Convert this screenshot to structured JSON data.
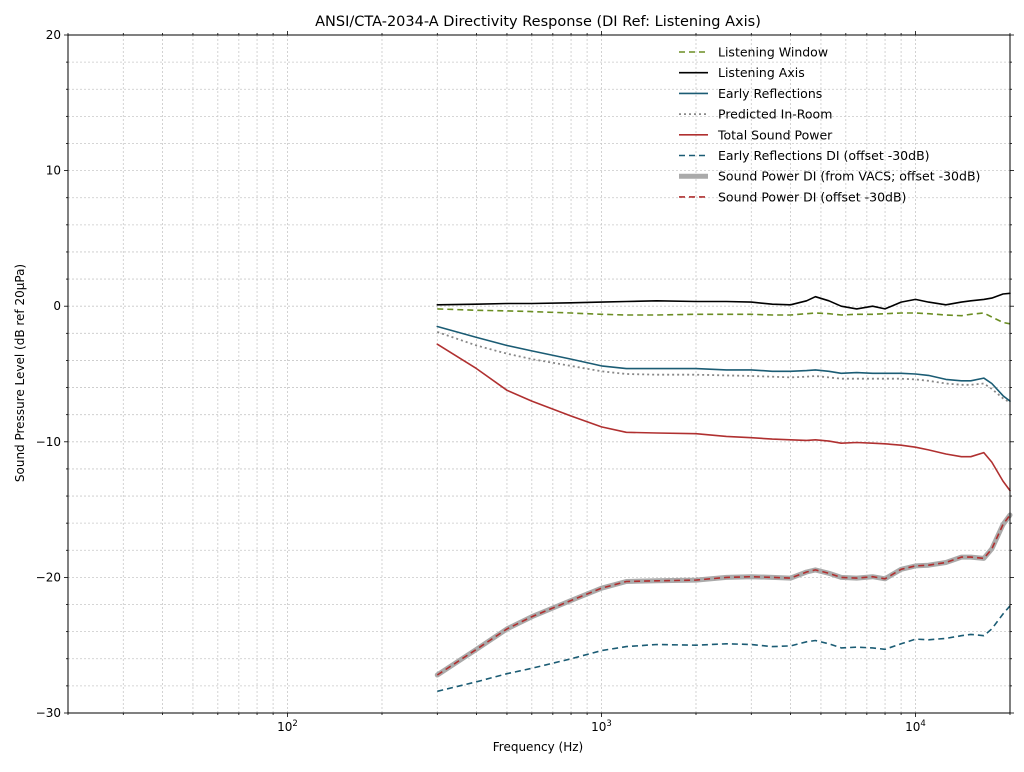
{
  "chart_data": {
    "type": "line",
    "title": "ANSI/CTA-2034-A Directivity Response (DI Ref: Listening Axis)",
    "xlabel": "Frequency (Hz)",
    "ylabel": "Sound Pressure Level (dB ref 20µPa)",
    "xscale": "log",
    "xlim": [
      20,
      20000
    ],
    "ylim": [
      -30,
      20
    ],
    "yticks": [
      -30,
      -20,
      -10,
      0,
      10,
      20
    ],
    "ytick_labels": [
      "−30",
      "−20",
      "−10",
      "0",
      "10",
      "20"
    ],
    "xticks": [
      {
        "value": 100,
        "base": "10",
        "exp": "2"
      },
      {
        "value": 1000,
        "base": "10",
        "exp": "3"
      },
      {
        "value": 10000,
        "base": "10",
        "exp": "4"
      }
    ],
    "grid": true,
    "legend_position": "top-right",
    "x": [
      300,
      400,
      500,
      600,
      800,
      1000,
      1200,
      1500,
      2000,
      2500,
      3000,
      3500,
      4000,
      4500,
      4800,
      5300,
      5800,
      6500,
      7300,
      8000,
      9000,
      10000,
      11000,
      12500,
      14000,
      15000,
      16500,
      17500,
      19000,
      20000
    ],
    "series": [
      {
        "name": "Listening Window",
        "color": "#6b8e23",
        "dash": "6,4",
        "width": 1.6,
        "values": [
          -0.2,
          -0.3,
          -0.35,
          -0.4,
          -0.5,
          -0.6,
          -0.65,
          -0.65,
          -0.6,
          -0.6,
          -0.6,
          -0.65,
          -0.65,
          -0.55,
          -0.5,
          -0.55,
          -0.65,
          -0.6,
          -0.6,
          -0.55,
          -0.5,
          -0.5,
          -0.55,
          -0.65,
          -0.7,
          -0.6,
          -0.5,
          -0.8,
          -1.2,
          -1.3
        ]
      },
      {
        "name": "Listening Axis",
        "color": "#000000",
        "dash": "",
        "width": 1.6,
        "values": [
          0.1,
          0.15,
          0.2,
          0.2,
          0.25,
          0.3,
          0.35,
          0.4,
          0.35,
          0.35,
          0.3,
          0.15,
          0.1,
          0.4,
          0.7,
          0.4,
          0.0,
          -0.2,
          0.0,
          -0.2,
          0.3,
          0.5,
          0.3,
          0.1,
          0.3,
          0.4,
          0.5,
          0.6,
          0.9,
          0.95
        ]
      },
      {
        "name": "Early Reflections",
        "color": "#1b5c74",
        "dash": "",
        "width": 1.6,
        "values": [
          -1.5,
          -2.3,
          -2.9,
          -3.3,
          -3.9,
          -4.4,
          -4.6,
          -4.6,
          -4.6,
          -4.7,
          -4.7,
          -4.8,
          -4.8,
          -4.75,
          -4.7,
          -4.8,
          -4.95,
          -4.9,
          -4.95,
          -4.95,
          -4.95,
          -5.0,
          -5.1,
          -5.4,
          -5.5,
          -5.5,
          -5.3,
          -5.7,
          -6.6,
          -7.0
        ]
      },
      {
        "name": "Predicted In-Room",
        "color": "#888888",
        "dash": "2,3",
        "width": 1.8,
        "values": [
          -1.9,
          -2.9,
          -3.5,
          -3.9,
          -4.4,
          -4.8,
          -5.0,
          -5.05,
          -5.05,
          -5.1,
          -5.15,
          -5.2,
          -5.25,
          -5.2,
          -5.15,
          -5.25,
          -5.35,
          -5.35,
          -5.35,
          -5.35,
          -5.35,
          -5.4,
          -5.5,
          -5.7,
          -5.8,
          -5.8,
          -5.7,
          -6.1,
          -6.8,
          -7.1
        ]
      },
      {
        "name": "Total Sound Power",
        "color": "#b03030",
        "dash": "",
        "width": 1.6,
        "values": [
          -2.8,
          -4.6,
          -6.2,
          -7.0,
          -8.1,
          -8.9,
          -9.3,
          -9.35,
          -9.4,
          -9.6,
          -9.7,
          -9.8,
          -9.85,
          -9.9,
          -9.85,
          -9.95,
          -10.1,
          -10.05,
          -10.1,
          -10.15,
          -10.25,
          -10.4,
          -10.6,
          -10.9,
          -11.1,
          -11.1,
          -10.8,
          -11.5,
          -12.9,
          -13.6
        ]
      },
      {
        "name": "Early Reflections DI (offset -30dB)",
        "color": "#1b5c74",
        "dash": "6,4",
        "width": 1.6,
        "values": [
          -28.4,
          -27.7,
          -27.1,
          -26.7,
          -26.0,
          -25.4,
          -25.1,
          -24.95,
          -25.0,
          -24.9,
          -24.95,
          -25.1,
          -25.05,
          -24.75,
          -24.65,
          -24.9,
          -25.2,
          -25.15,
          -25.2,
          -25.3,
          -24.9,
          -24.55,
          -24.6,
          -24.5,
          -24.3,
          -24.2,
          -24.3,
          -23.8,
          -22.7,
          -22.1
        ]
      },
      {
        "name": "Sound Power DI (from VACS; offset -30dB)",
        "color": "#aaaaaa",
        "dash": "",
        "width": 5,
        "values": [
          -27.2,
          -25.3,
          -23.8,
          -22.9,
          -21.7,
          -20.8,
          -20.3,
          -20.25,
          -20.2,
          -20.0,
          -19.95,
          -20.0,
          -20.05,
          -19.6,
          -19.45,
          -19.7,
          -20.0,
          -20.05,
          -19.95,
          -20.1,
          -19.4,
          -19.15,
          -19.1,
          -18.9,
          -18.5,
          -18.5,
          -18.6,
          -17.9,
          -16.1,
          -15.4
        ]
      },
      {
        "name": "Sound Power DI (offset -30dB)",
        "color": "#b03030",
        "dash": "6,4",
        "width": 1.6,
        "values": [
          -27.2,
          -25.3,
          -23.8,
          -22.9,
          -21.7,
          -20.8,
          -20.3,
          -20.25,
          -20.2,
          -20.0,
          -19.95,
          -20.0,
          -20.05,
          -19.6,
          -19.45,
          -19.7,
          -20.0,
          -20.05,
          -19.95,
          -20.1,
          -19.4,
          -19.15,
          -19.1,
          -18.9,
          -18.5,
          -18.5,
          -18.6,
          -17.9,
          -16.1,
          -15.4
        ]
      }
    ]
  }
}
